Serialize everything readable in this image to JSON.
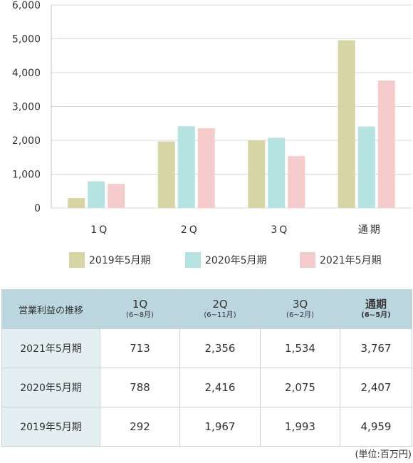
{
  "chart_data": {
    "type": "bar",
    "categories": [
      "1Q",
      "2Q",
      "3Q",
      "通期"
    ],
    "series": [
      {
        "name": "2019年5月期",
        "values": [
          292,
          1967,
          1993,
          4959
        ],
        "color": "#d8d5a5"
      },
      {
        "name": "2020年5月期",
        "values": [
          788,
          2416,
          2075,
          2407
        ],
        "color": "#b4e3e1"
      },
      {
        "name": "2021年5月期",
        "values": [
          713,
          2356,
          1534,
          3767
        ],
        "color": "#f6cbcc"
      }
    ],
    "ylim": [
      0,
      6000
    ],
    "yticks": [
      "0",
      "1,000",
      "2,000",
      "3,000",
      "4,000",
      "5,000",
      "6,000"
    ],
    "category_labels": [
      "1Q",
      "2Q",
      "3Q",
      "通期"
    ],
    "grid": "horizontal",
    "legend_position": "bottom"
  },
  "table": {
    "corner": "営業利益の推移",
    "columns": [
      {
        "label": "1Q",
        "sub": "(6~8月)"
      },
      {
        "label": "2Q",
        "sub": "(6~11月)"
      },
      {
        "label": "3Q",
        "sub": "(6~2月)"
      },
      {
        "label": "通期",
        "sub": "(6~5月)"
      }
    ],
    "rows": [
      {
        "label": "2021年5月期",
        "values": [
          "713",
          "2,356",
          "1,534",
          "3,767"
        ]
      },
      {
        "label": "2020年5月期",
        "values": [
          "788",
          "2,416",
          "2,075",
          "2,407"
        ]
      },
      {
        "label": "2019年5月期",
        "values": [
          "292",
          "1,967",
          "1,993",
          "4,959"
        ]
      }
    ]
  },
  "unit_note": "(単位:百万円)"
}
